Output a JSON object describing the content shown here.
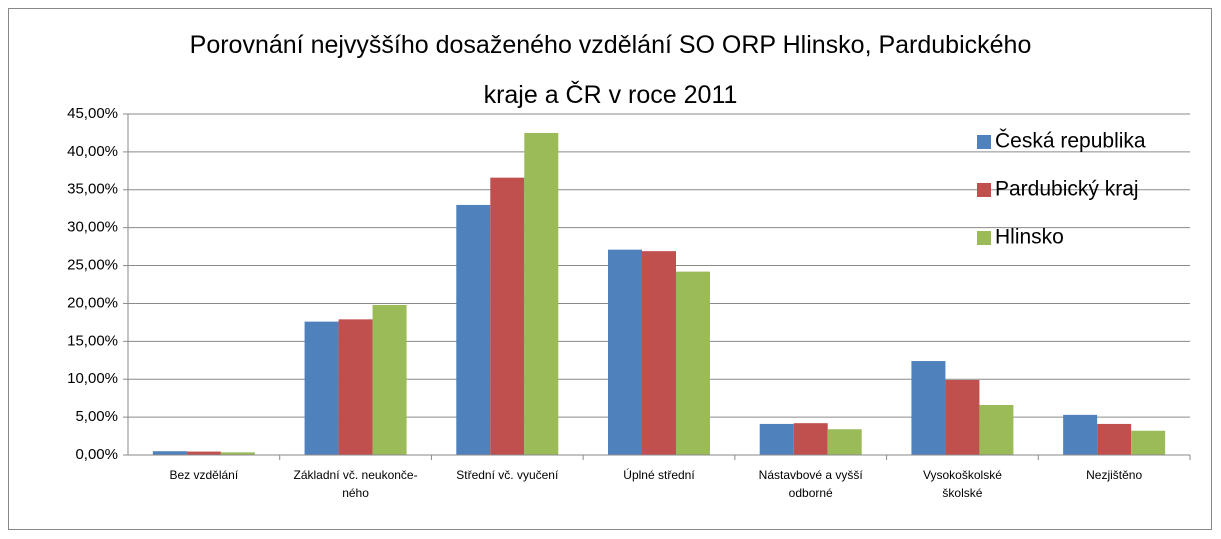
{
  "chart_data": {
    "type": "bar",
    "title": "Porovnání nejvyššího dosaženého vzdělání SO ORP Hlinsko, Pardubického\nkraje a ČR v roce 2011",
    "categories": [
      "Bez vzdělání",
      "Základní vč. neukonče-\nného",
      "Střední vč. vyučení",
      "Úplné střední",
      "Nástavbové a vyšší\nodborné",
      "Vysokoškolské\nškolské",
      "Nezjištěno"
    ],
    "series": [
      {
        "name": "Česká republika",
        "color": "#4f81bd",
        "values": [
          0.5,
          17.6,
          33.0,
          27.1,
          4.1,
          12.4,
          5.3
        ]
      },
      {
        "name": "Pardubický kraj",
        "color": "#c0504d",
        "values": [
          0.45,
          17.9,
          36.6,
          26.9,
          4.2,
          9.9,
          4.1
        ]
      },
      {
        "name": "Hlinsko",
        "color": "#9bbb59",
        "values": [
          0.35,
          19.8,
          42.5,
          24.2,
          3.4,
          6.6,
          3.2
        ]
      }
    ],
    "ylim": [
      0,
      45
    ],
    "yticks": [
      {
        "value": 0,
        "label": "0,00%"
      },
      {
        "value": 5,
        "label": "5,00%"
      },
      {
        "value": 10,
        "label": "10,00%"
      },
      {
        "value": 15,
        "label": "15,00%"
      },
      {
        "value": 20,
        "label": "20,00%"
      },
      {
        "value": 25,
        "label": "25,00%"
      },
      {
        "value": 30,
        "label": "30,00%"
      },
      {
        "value": 35,
        "label": "35,00%"
      },
      {
        "value": 40,
        "label": "40,00%"
      },
      {
        "value": 45,
        "label": "45,00%"
      }
    ],
    "grid": true,
    "legend": "top-right"
  }
}
